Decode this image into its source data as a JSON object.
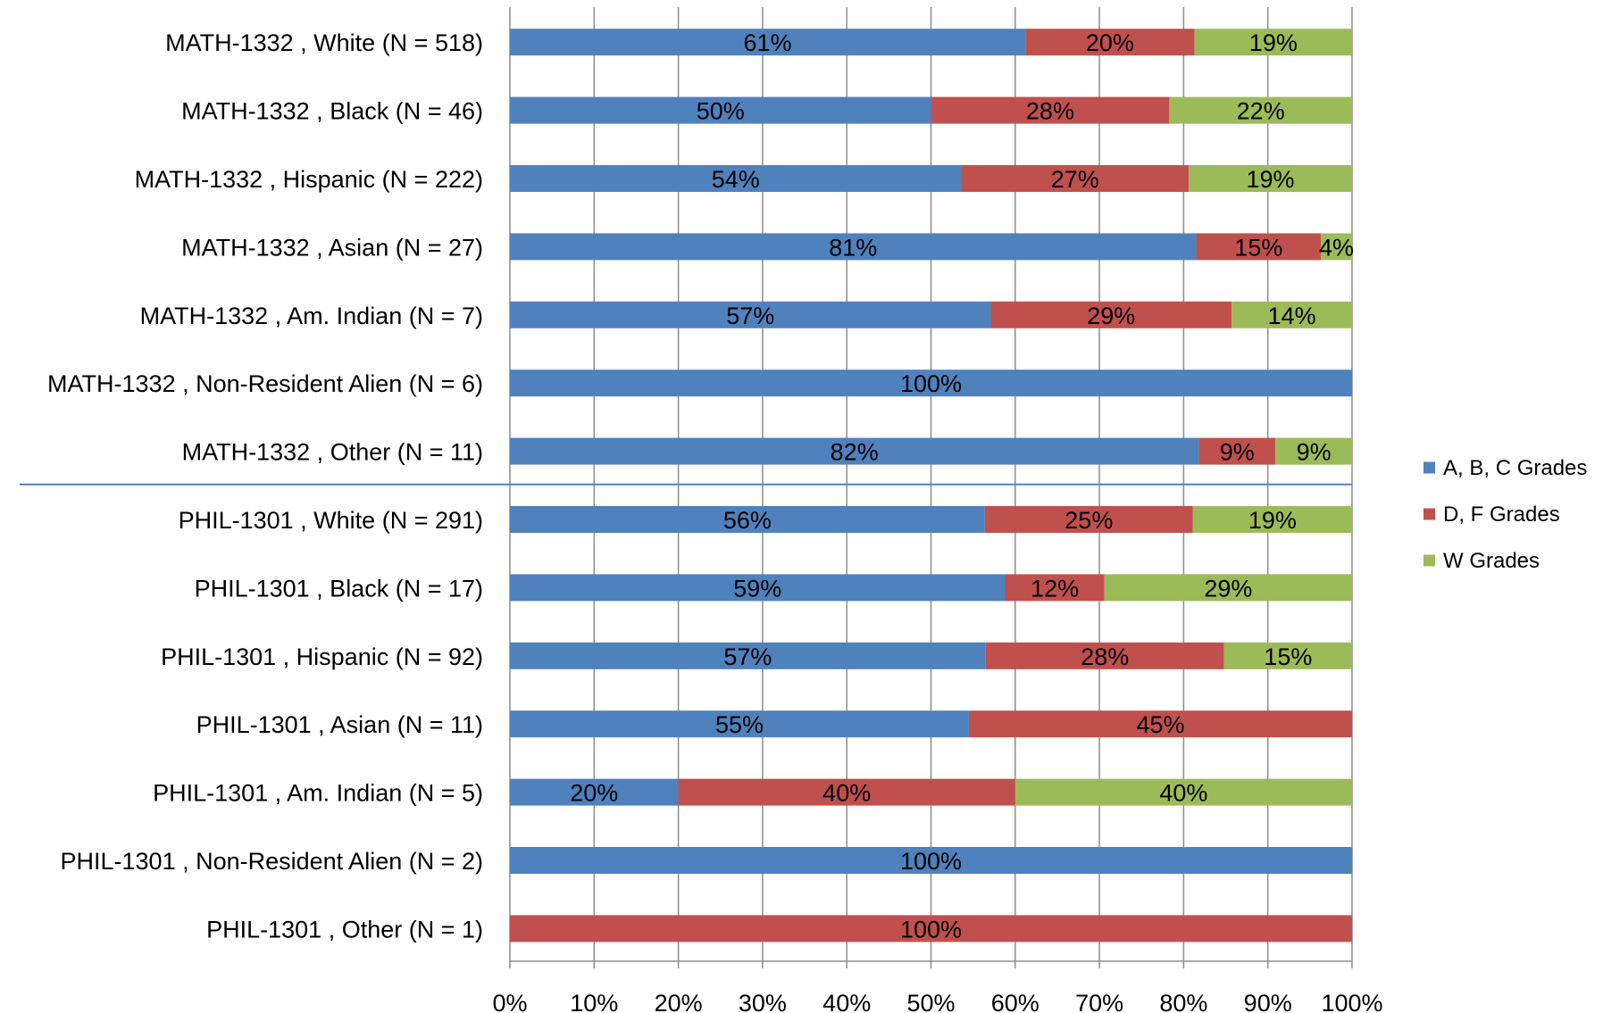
{
  "chart_data": {
    "type": "bar",
    "orientation": "horizontal",
    "stacked": true,
    "percent_stacked": true,
    "title": "",
    "xlabel": "",
    "ylabel": "",
    "xlim": [
      0,
      100
    ],
    "x_ticks": [
      "0%",
      "10%",
      "20%",
      "30%",
      "40%",
      "50%",
      "60%",
      "70%",
      "80%",
      "90%",
      "100%"
    ],
    "grid": "vertical",
    "legend_position": "right",
    "group_separator_after_index": 6,
    "separator_color": "#4f81bd",
    "categories": [
      "MATH-1332 ,  White (N = 518)",
      "MATH-1332 ,  Black (N = 46)",
      "MATH-1332 ,  Hispanic (N = 222)",
      "MATH-1332 ,  Asian (N = 27)",
      "MATH-1332 ,  Am. Indian (N = 7)",
      "MATH-1332 ,  Non-Resident Alien (N = 6)",
      "MATH-1332 ,  Other (N = 11)",
      "PHIL-1301 ,  White (N = 291)",
      "PHIL-1301 ,  Black (N = 17)",
      "PHIL-1301 ,  Hispanic (N = 92)",
      "PHIL-1301 ,  Asian (N = 11)",
      "PHIL-1301 ,  Am. Indian (N = 5)",
      "PHIL-1301 ,  Non-Resident Alien (N = 2)",
      "PHIL-1301 ,  Other (N = 1)"
    ],
    "series": [
      {
        "name": "A, B, C Grades",
        "color": "#4f81bd",
        "values": [
          61.2,
          50.0,
          53.6,
          81.5,
          57.1,
          100,
          81.8,
          56.4,
          58.8,
          56.5,
          54.5,
          20.0,
          100,
          0
        ],
        "labels": [
          "61%",
          "50%",
          "54%",
          "81%",
          "57%",
          "100%",
          "82%",
          "56%",
          "59%",
          "57%",
          "55%",
          "20%",
          "100%",
          ""
        ]
      },
      {
        "name": "D, F Grades",
        "color": "#c0504d",
        "values": [
          20.1,
          28.3,
          27.0,
          14.8,
          28.6,
          0,
          9.1,
          24.7,
          11.8,
          28.3,
          45.5,
          40.0,
          0,
          100
        ],
        "labels": [
          "20%",
          "28%",
          "27%",
          "15%",
          "29%",
          "",
          "9%",
          "25%",
          "12%",
          "28%",
          "45%",
          "40%",
          "",
          "100%"
        ]
      },
      {
        "name": "W Grades",
        "color": "#9bbb59",
        "values": [
          18.7,
          21.7,
          19.4,
          3.7,
          14.3,
          0,
          9.1,
          18.9,
          29.4,
          15.2,
          0,
          40.0,
          0,
          0
        ],
        "labels": [
          "19%",
          "22%",
          "19%",
          "4%",
          "14%",
          "",
          "9%",
          "19%",
          "29%",
          "15%",
          "",
          "40%",
          "",
          ""
        ]
      }
    ]
  }
}
